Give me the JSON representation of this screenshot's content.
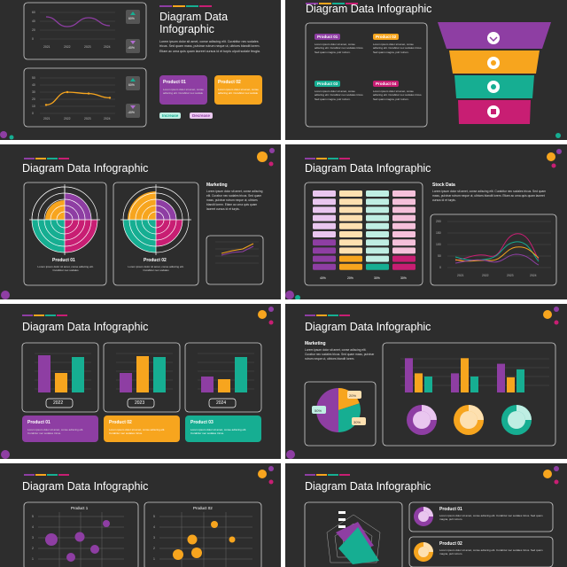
{
  "colors": {
    "purple": "#8e3ea3",
    "orange": "#f7a51e",
    "teal": "#16ae92",
    "magenta": "#c81e73",
    "lilac": "#b06ccf",
    "pink": "#e9c6ef",
    "bg": "#2d2d2d"
  },
  "slides": {
    "s1": {
      "title": "Diagram Data Infographic",
      "body": "Lorem ipsum dolor sit amet, conse adiscing elit. Curabitur nec sodales tricus. Sed quam mass, pulvinar rutrum neque ut, ultrices blandit lorem. Etiam ac urna quis quam laoreet cursus id et turpis ulputi sodale feugia.",
      "chart1_ticks_y": [
        "60",
        "40",
        "20",
        "0"
      ],
      "chart2_ticks_y": [
        "50",
        "40",
        "30",
        "20",
        "10",
        "0"
      ],
      "ticks_x": [
        "2021",
        "2022",
        "2023",
        "2024"
      ],
      "badge_up": "60%",
      "badge_down": "-40%",
      "badge_up2": "60%",
      "badge_down2": "-40%",
      "card1_title": "Product 01",
      "card1_body": "Lorem ipsum dolor sit amet, conse adiscing elit. Curabitur nec sodale",
      "card2_title": "Product 02",
      "card2_body": "Lorem ipsum dolor sit amet, conse adiscing elit. Curabitur nec sodale",
      "increase": "Increase",
      "decrease": "Decrease"
    },
    "s2": {
      "title": "Diagram Data Infographic",
      "items": [
        {
          "label": "Product 01",
          "body": "Lorem ipsum dolor sit amet, conse adiscing elit. Curabitur nec sodales tricus. Sed quam magna, pulr rutrum."
        },
        {
          "label": "Product 02",
          "body": "Lorem ipsum dolor sit amet, conse adiscing elit. Curabitur nec sodales tricus. Sed quam magna, pulr rutrum."
        },
        {
          "label": "Product 03",
          "body": "Lorem ipsum dolor sit amet, conse adiscing elit. Curabitur nec sodales tricus. Sed quam magna, pulr rutrum."
        },
        {
          "label": "Product 04",
          "body": "Lorem ipsum dolor sit amet, conse adiscing elit. Curabitur nec sodales tricus. Sed quam magna, pulr rutrum."
        }
      ]
    },
    "s3": {
      "title": "Diagram Data Infographic",
      "heading": "Marketing",
      "body": "Lorem ipsum dolor sit amet, conse adiscing elit. Curabur nec sodales tricus. Sed quam mass, pulvinar rutrum neque ut, ultrices blandit lorem. Etiam ac urna quis quam laoreet cursus id et turpis.",
      "p1_title": "Product 01",
      "p1_body": "Lorem ipsum dolor sit amet, conse adiscing elit. Curabitur nec sodales",
      "p2_title": "Product 02",
      "p2_body": "Lorem ipsum dolor sit amet, conse adiscing elit. Curabitur nec sodales"
    },
    "s4": {
      "title": "Diagram Data Infographic",
      "heading": "Stock Data",
      "body": "Lorem ipsum dolor sit amet, conse adiscing elit. Curabitur nec sodales tricus. Sed quam mass, pulvinar rutrum neque ut, ultrices blandit lorem. Etiam ac urna quis quam laoreet cursus id et turpis.",
      "percents": [
        "40%",
        "20%",
        "30%",
        "30%"
      ],
      "ticks_y": [
        "200",
        "150",
        "100",
        "50",
        "0"
      ],
      "ticks_x": [
        "2021",
        "2022",
        "2023",
        "2024"
      ]
    },
    "s5": {
      "title": "Diagram Data Infographic",
      "years": [
        "2022",
        "2023",
        "2024"
      ],
      "cards": [
        {
          "title": "Product 01",
          "body": "Lorem ipsum dolor sit amet, conse adiscing elit. Curabitur nec sodales tricus."
        },
        {
          "title": "Product 02",
          "body": "Lorem ipsum dolor sit amet, conse adiscing elit. Curabitur nec sodales tricus."
        },
        {
          "title": "Product 03",
          "body": "Lorem ipsum dolor sit amet, conse adiscing elit. Curabitur nec sodales tricus."
        }
      ],
      "ticks_y": [
        "5",
        "4",
        "3",
        "2",
        "1",
        "0"
      ]
    },
    "s6": {
      "title": "Diagram Data Infographic",
      "heading": "Marketing",
      "body": "Lorem ipsum dolor sit amet, conse adiscing elit. Curabur nec sodales tricus. Sed quam mass, pulvinar rutrum neque ut, ultrices blandit lorem.",
      "pie_labels": [
        "20%",
        "30%",
        "50%"
      ]
    },
    "s7": {
      "title": "Diagram Data Infographic",
      "chart1_title": "Product 1",
      "chart2_title": "Product 02",
      "ticks_y": [
        "5",
        "4",
        "3",
        "2",
        "1"
      ]
    },
    "s8": {
      "title": "Diagram Data Infographic",
      "p1_title": "Product 01",
      "p1_body": "Lorem ipsum dolor sit amet, conse adiscing elit. Curabitur nec sodales tricus. Sed quam magna, pulr rutrum.",
      "p2_title": "Product 02",
      "p2_body": "Lorem ipsum dolor sit amet, conse adiscing elit. Curabitur nec sodales tricus. Sed quam magna, pulr rutrum."
    }
  },
  "chart_data": [
    {
      "type": "line",
      "title": "",
      "x": [
        "2021",
        "2022",
        "2023",
        "2024"
      ],
      "series": [
        {
          "values": [
            50,
            28,
            48,
            30
          ]
        }
      ],
      "ylim": [
        0,
        60
      ]
    },
    {
      "type": "line",
      "title": "",
      "x": [
        "2021",
        "2022",
        "2023",
        "2024"
      ],
      "series": [
        {
          "values": [
            12,
            30,
            28,
            22
          ]
        }
      ],
      "ylim": [
        0,
        50
      ]
    },
    {
      "type": "bar",
      "title": "",
      "categories": [
        "2022",
        "2023",
        "2024"
      ],
      "series": [
        {
          "values": [
            4.2,
            2.2,
            1.8
          ]
        },
        {
          "values": [
            2.2,
            4.1,
            1.5
          ]
        },
        {
          "values": [
            4.0,
            4.0,
            4.0
          ]
        }
      ],
      "ylim": [
        0,
        5
      ]
    },
    {
      "type": "pie",
      "title": "",
      "categories": [
        "20%",
        "30%",
        "50%"
      ],
      "values": [
        20,
        30,
        50
      ]
    }
  ]
}
